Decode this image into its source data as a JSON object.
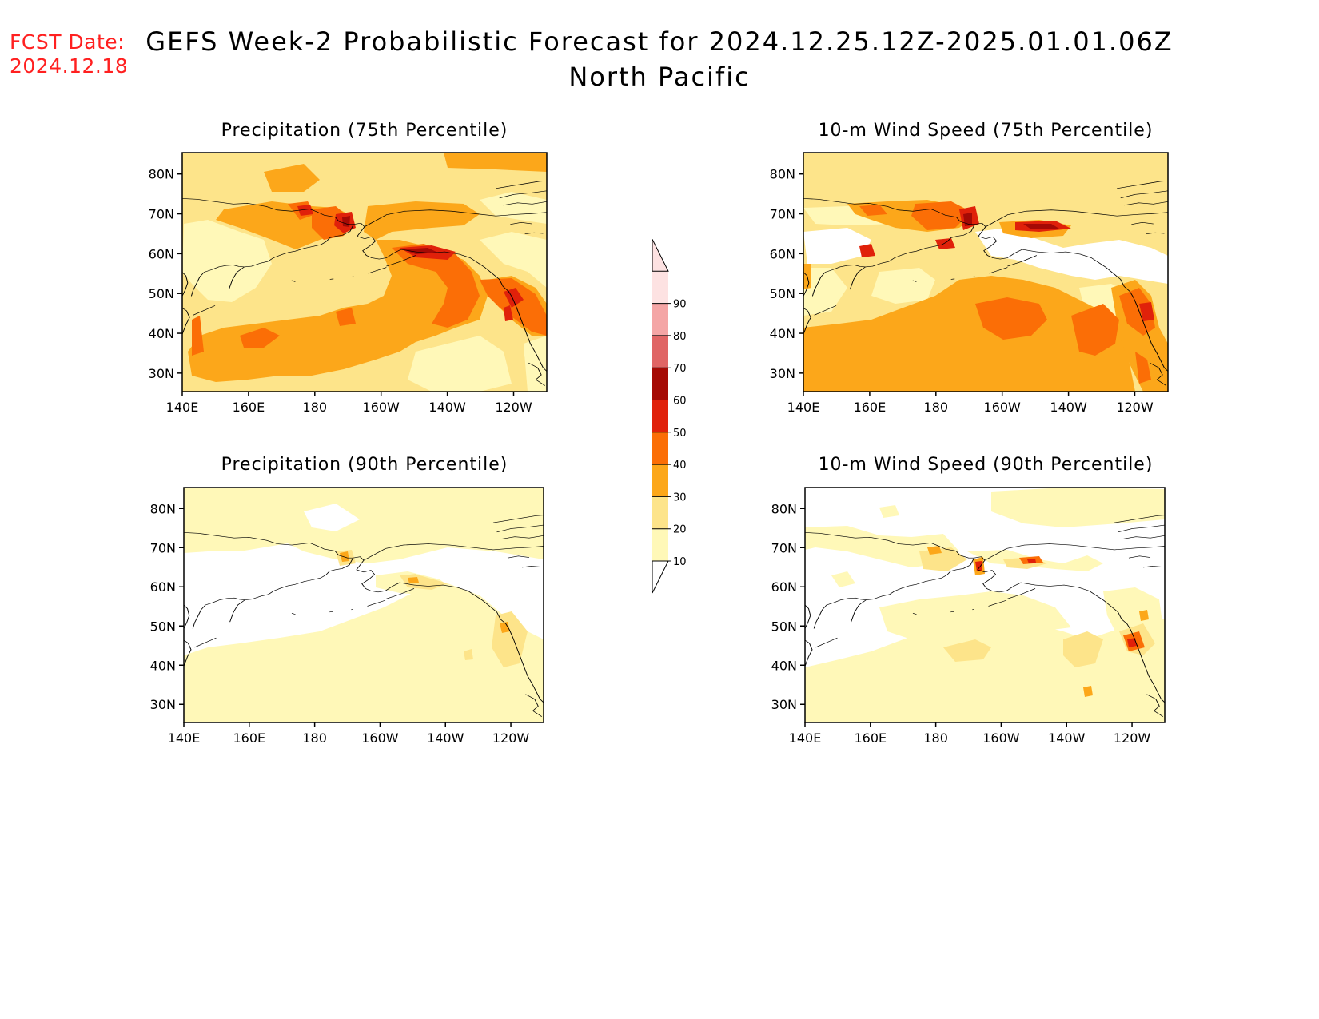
{
  "header": {
    "fcst_label": "FCST Date:",
    "fcst_date": "2024.12.18",
    "title": "GEFS Week-2 Probabilistic Forecast for 2024.12.25.12Z-2025.01.01.06Z",
    "subtitle": "North Pacific"
  },
  "axes": {
    "lon_labels": [
      "140E",
      "160E",
      "180",
      "160W",
      "140W",
      "120W"
    ],
    "lat_labels": [
      "80N",
      "70N",
      "60N",
      "50N",
      "40N",
      "30N"
    ]
  },
  "panels": [
    {
      "id": "precip75",
      "title": "Precipitation (75th Percentile)"
    },
    {
      "id": "wind75",
      "title": "10-m Wind Speed (75th Percentile)"
    },
    {
      "id": "precip90",
      "title": "Precipitation (90th Percentile)"
    },
    {
      "id": "wind90",
      "title": "10-m Wind Speed (90th Percentile)"
    }
  ],
  "colorbar": {
    "levels": [
      "10",
      "20",
      "30",
      "40",
      "50",
      "60",
      "70",
      "80",
      "90"
    ],
    "colors": [
      "#fff8b8",
      "#fde48a",
      "#fca71a",
      "#fb6e06",
      "#e0210a",
      "#a50a05",
      "#e06565",
      "#f4a5a5",
      "#fde2e2"
    ]
  },
  "palette": {
    "c1": "#fff8b8",
    "c2": "#fde48a",
    "c3": "#fca71a",
    "c4": "#fb6e06",
    "c5": "#e0210a",
    "c6": "#a50a05"
  }
}
